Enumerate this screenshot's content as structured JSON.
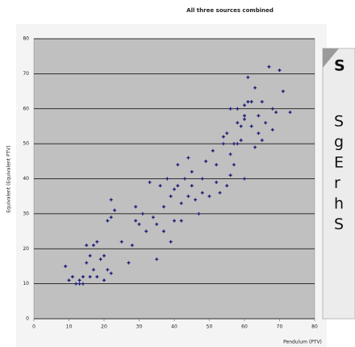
{
  "chart_data": {
    "type": "scatter",
    "title": "All three sources combined",
    "x_label": "Pendulum (PTV)",
    "y_label": "Equivalent (Equivalent PTV)",
    "color": "#1c1c78",
    "grid": true,
    "xlim": [
      0,
      80
    ],
    "xticks": [
      0,
      10,
      20,
      30,
      40,
      50,
      60,
      70,
      80
    ],
    "ylim": [
      0,
      80
    ],
    "yticks": [
      0,
      10,
      20,
      30,
      40,
      50,
      60,
      70,
      80
    ],
    "x": [
      9,
      10,
      11,
      12,
      13,
      13,
      14,
      14,
      15,
      15,
      16,
      16,
      17,
      17,
      18,
      18,
      19,
      20,
      20,
      21,
      21,
      22,
      22,
      23,
      22,
      25,
      27,
      28,
      29,
      29,
      30,
      31,
      32,
      33,
      34,
      35,
      35,
      36,
      37,
      37,
      38,
      39,
      39,
      40,
      40,
      41,
      42,
      42,
      43,
      44,
      44,
      45,
      46,
      47,
      48,
      48,
      49,
      50,
      51,
      52,
      52,
      53,
      54,
      54,
      55,
      56,
      56,
      57,
      58,
      58,
      59,
      59,
      60,
      60,
      61,
      61,
      62,
      62,
      63,
      63,
      64,
      64,
      65,
      65,
      66,
      67,
      68,
      68,
      69,
      70,
      71,
      73,
      55,
      56,
      57,
      60,
      58,
      60,
      45,
      41
    ],
    "values": [
      15,
      11,
      12,
      10,
      11,
      10,
      12,
      10,
      16,
      21,
      18,
      12,
      21,
      14,
      22,
      12,
      17,
      11,
      18,
      14,
      28,
      29,
      34,
      31,
      13,
      22,
      16,
      21,
      28,
      32,
      27,
      30,
      25,
      39,
      29,
      17,
      27,
      38,
      25,
      32,
      40,
      35,
      22,
      37,
      28,
      38,
      33,
      28,
      40,
      35,
      46,
      38,
      34,
      30,
      40,
      36,
      45,
      35,
      48,
      39,
      44,
      36,
      52,
      50,
      53,
      41,
      47,
      50,
      56,
      60,
      55,
      51,
      61,
      57,
      62,
      69,
      55,
      62,
      49,
      66,
      58,
      53,
      62,
      51,
      56,
      72,
      60,
      54,
      59,
      71,
      65,
      59,
      38,
      60,
      44,
      40,
      50,
      58,
      42,
      44
    ]
  },
  "callout": {
    "heading": "S",
    "lines": [
      "S",
      "g",
      "E",
      "r",
      "h",
      "S"
    ]
  }
}
